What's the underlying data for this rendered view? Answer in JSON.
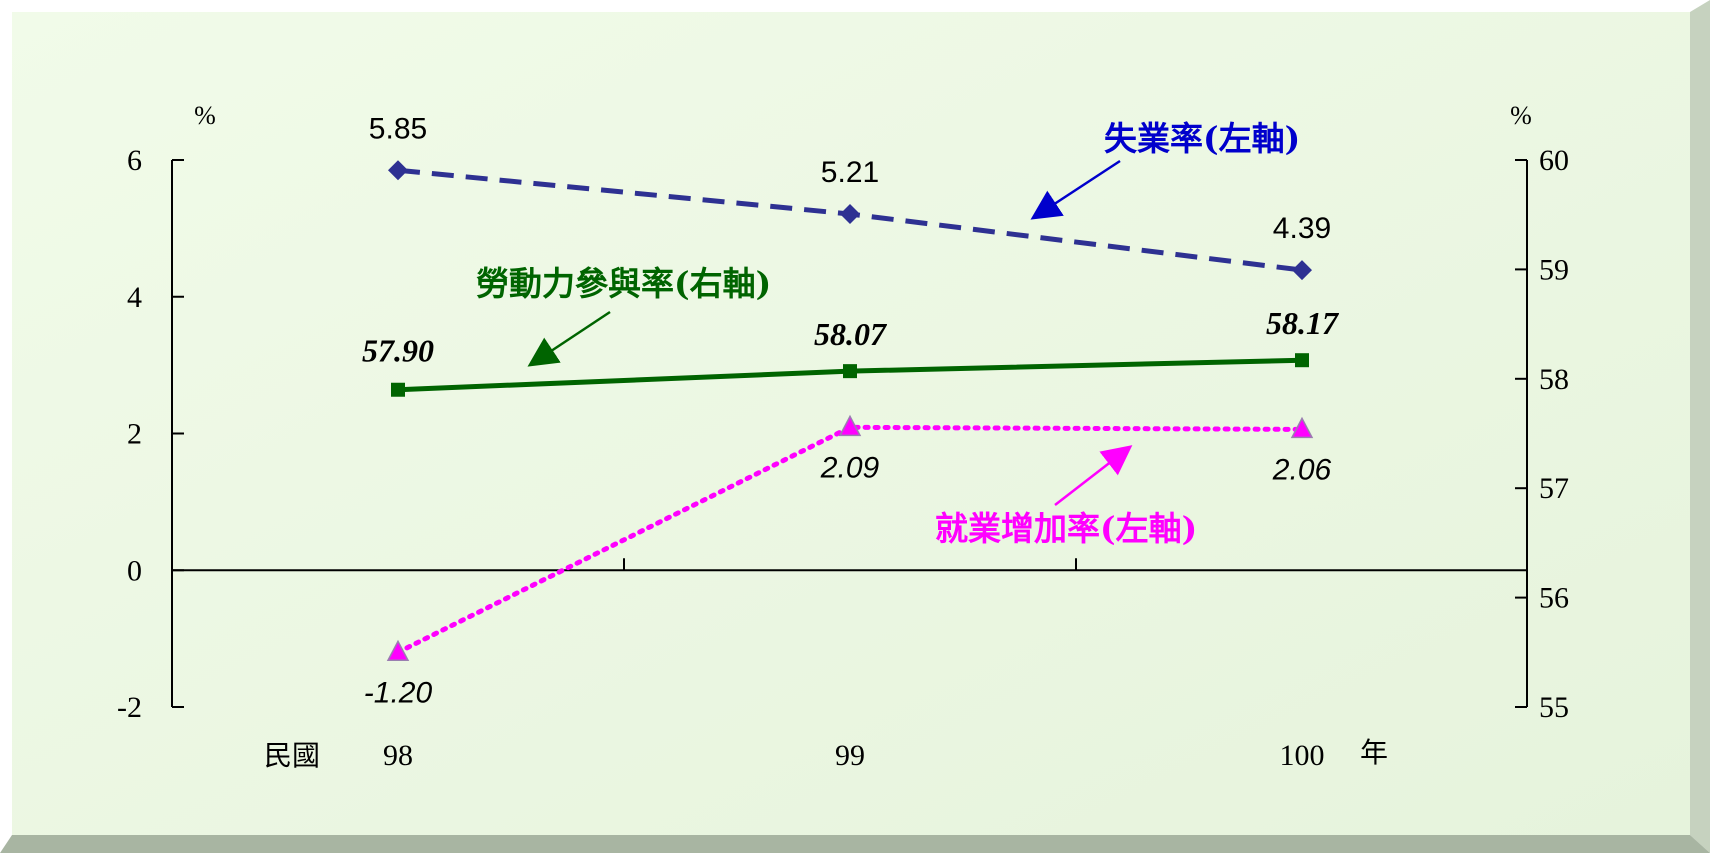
{
  "chart_data": {
    "type": "line",
    "categories": [
      "98",
      "99",
      "100"
    ],
    "x_prefix": "民國",
    "x_suffix": "年",
    "left_axis": {
      "unit": "%",
      "range": [
        -2,
        6
      ],
      "ticks": [
        "6",
        "4",
        "2",
        "0",
        "-2"
      ]
    },
    "right_axis": {
      "unit": "%",
      "range": [
        55,
        60
      ],
      "ticks": [
        "60",
        "59",
        "58",
        "57",
        "56",
        "55"
      ]
    },
    "series": [
      {
        "name": "失業率(左軸)",
        "axis": "left",
        "values": [
          5.85,
          5.21,
          4.39
        ],
        "labels": [
          "5.85",
          "5.21",
          "4.39"
        ],
        "color": "#2e3192",
        "style": "dashed",
        "marker": "diamond"
      },
      {
        "name": "勞動力參與率(右軸)",
        "axis": "right",
        "values": [
          57.9,
          58.07,
          58.17
        ],
        "labels": [
          "57.90",
          "58.07",
          "58.17"
        ],
        "color": "#006400",
        "style": "solid",
        "marker": "square"
      },
      {
        "name": "就業增加率(左軸)",
        "axis": "left",
        "values": [
          -1.2,
          2.09,
          2.06
        ],
        "labels": [
          "-1.20",
          "2.09",
          "2.06"
        ],
        "color": "#ff00ff",
        "style": "dotted",
        "marker": "triangle"
      }
    ],
    "grid": false,
    "legend": "inline-annotations",
    "background_color": "#edf8e4"
  }
}
